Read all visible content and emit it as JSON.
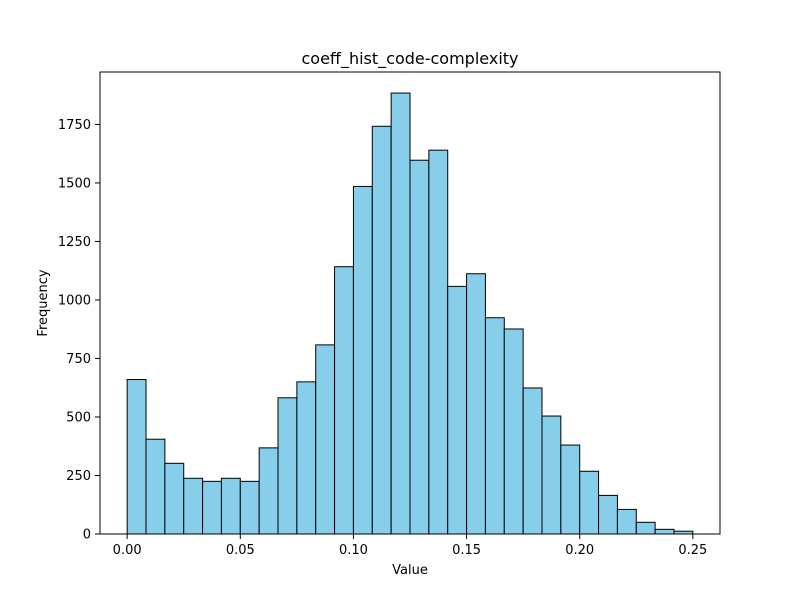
{
  "chart_data": {
    "type": "bar",
    "title": "coeff_hist_code-complexity",
    "xlabel": "Value",
    "ylabel": "Frequency",
    "xlim": [
      -0.012,
      0.262
    ],
    "ylim": [
      0,
      1974
    ],
    "x_ticks": [
      0.0,
      0.05,
      0.1,
      0.15,
      0.2,
      0.25
    ],
    "x_tick_labels": [
      "0.00",
      "0.05",
      "0.10",
      "0.15",
      "0.20",
      "0.25"
    ],
    "y_ticks": [
      0,
      250,
      500,
      750,
      1000,
      1250,
      1500,
      1750
    ],
    "y_tick_labels": [
      "0",
      "250",
      "500",
      "750",
      "1000",
      "1250",
      "1500",
      "1750"
    ],
    "bin_edges": [
      0.0,
      0.008333,
      0.016667,
      0.025,
      0.033333,
      0.041667,
      0.05,
      0.058333,
      0.066667,
      0.075,
      0.083333,
      0.091667,
      0.1,
      0.108333,
      0.116667,
      0.125,
      0.133333,
      0.141667,
      0.15,
      0.158333,
      0.166667,
      0.175,
      0.183333,
      0.191667,
      0.2,
      0.208333,
      0.216667,
      0.225,
      0.233333,
      0.241667,
      0.25
    ],
    "values": [
      660,
      405,
      302,
      238,
      225,
      238,
      225,
      368,
      582,
      650,
      808,
      1142,
      1485,
      1742,
      1884,
      1597,
      1640,
      1058,
      1112,
      924,
      876,
      624,
      504,
      380,
      268,
      165,
      105,
      50,
      20,
      12
    ],
    "bar_color": "#87ceeb",
    "edge_color": "#000000",
    "grid": false
  }
}
